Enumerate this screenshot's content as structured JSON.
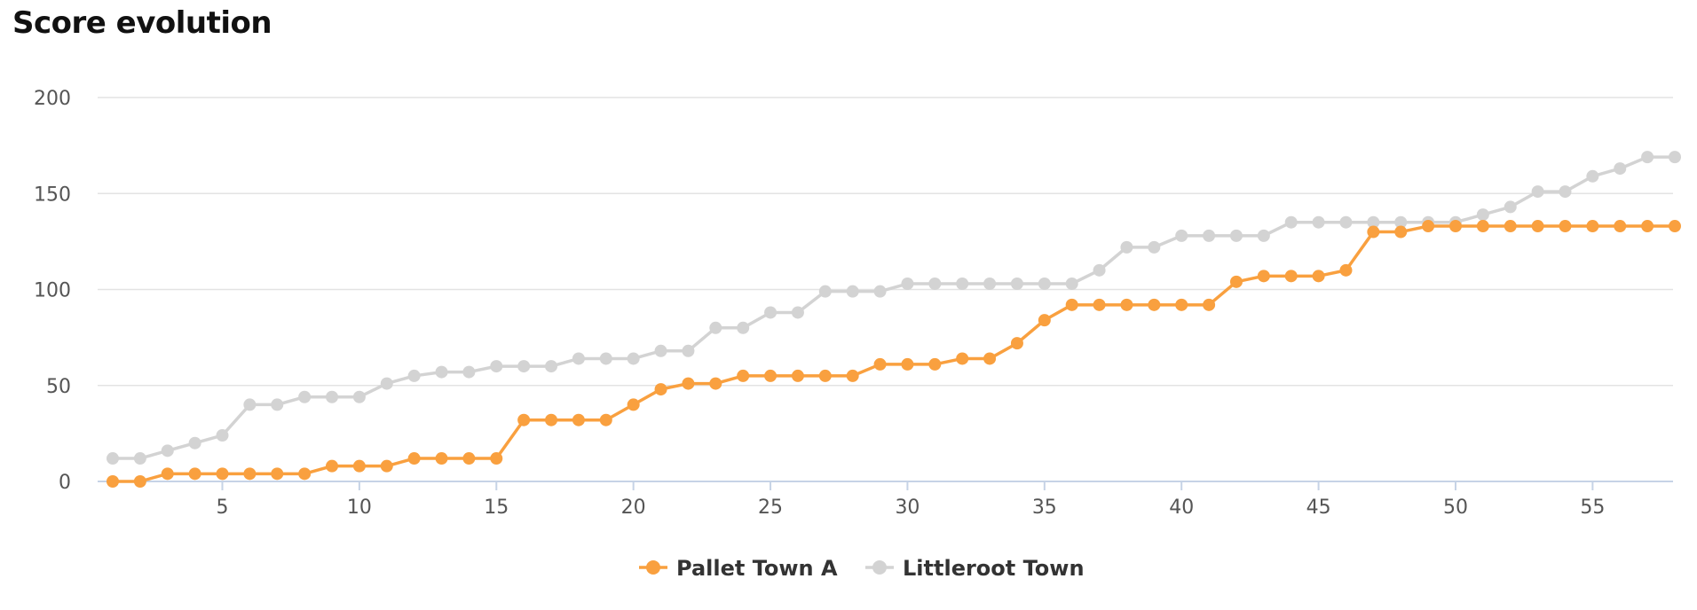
{
  "chart_data": {
    "type": "line",
    "title": "Score evolution",
    "xlabel": "",
    "ylabel": "",
    "xlim": [
      1,
      58
    ],
    "ylim": [
      0,
      200
    ],
    "y_ticks": [
      0,
      50,
      100,
      150,
      200
    ],
    "x_ticks": [
      5,
      10,
      15,
      20,
      25,
      30,
      35,
      40,
      45,
      50,
      55
    ],
    "grid": true,
    "legend_position": "bottom-center",
    "x": [
      1,
      2,
      3,
      4,
      5,
      6,
      7,
      8,
      9,
      10,
      11,
      12,
      13,
      14,
      15,
      16,
      17,
      18,
      19,
      20,
      21,
      22,
      23,
      24,
      25,
      26,
      27,
      28,
      29,
      30,
      31,
      32,
      33,
      34,
      35,
      36,
      37,
      38,
      39,
      40,
      41,
      42,
      43,
      44,
      45,
      46,
      47,
      48,
      49,
      50,
      51,
      52,
      53,
      54,
      55,
      56,
      57,
      58
    ],
    "series": [
      {
        "name": "Pallet Town A",
        "color": "#f9a03f",
        "values": [
          0,
          0,
          4,
          4,
          4,
          4,
          4,
          4,
          8,
          8,
          8,
          12,
          12,
          12,
          12,
          32,
          32,
          32,
          32,
          40,
          48,
          51,
          51,
          55,
          55,
          55,
          55,
          55,
          61,
          61,
          61,
          64,
          64,
          72,
          84,
          92,
          92,
          92,
          92,
          92,
          92,
          104,
          107,
          107,
          107,
          110,
          130,
          130,
          133,
          133,
          133,
          133,
          133,
          133,
          133,
          133,
          133,
          133
        ]
      },
      {
        "name": "Littleroot Town",
        "color": "#d3d3d3",
        "values": [
          12,
          12,
          16,
          20,
          24,
          40,
          40,
          44,
          44,
          44,
          51,
          55,
          57,
          57,
          60,
          60,
          60,
          64,
          64,
          64,
          68,
          68,
          80,
          80,
          88,
          88,
          99,
          99,
          99,
          103,
          103,
          103,
          103,
          103,
          103,
          103,
          110,
          122,
          122,
          128,
          128,
          128,
          128,
          135,
          135,
          135,
          135,
          135,
          135,
          135,
          139,
          143,
          151,
          151,
          159,
          163,
          169,
          169
        ]
      }
    ]
  }
}
